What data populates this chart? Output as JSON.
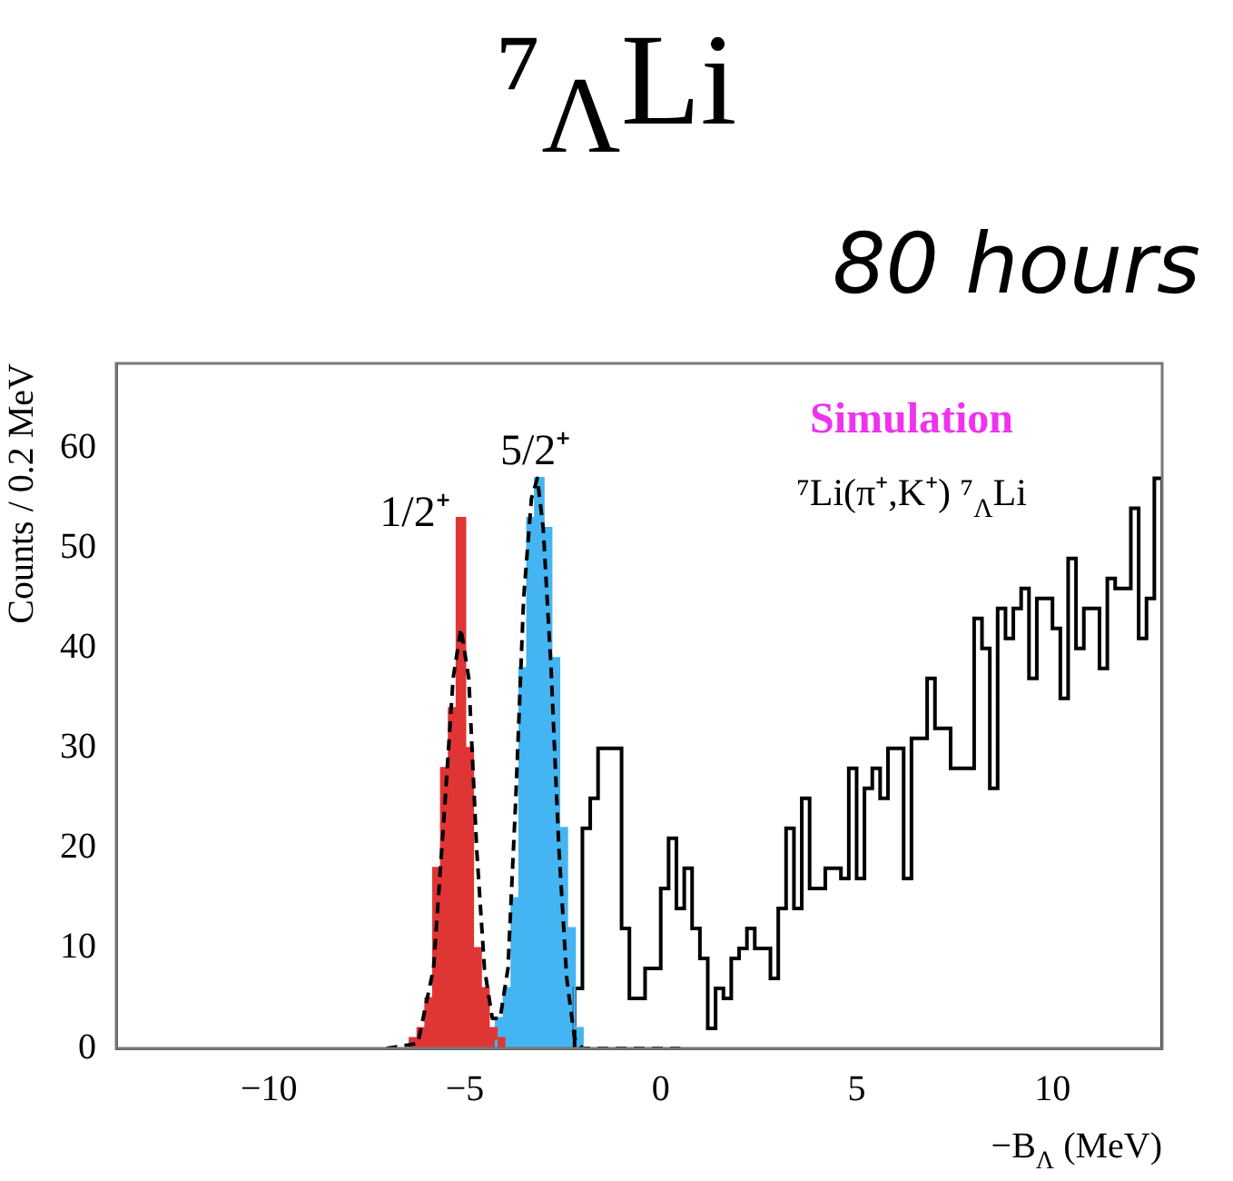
{
  "chart_data": {
    "type": "histogram",
    "title": "⁷$_{Λ}$Li",
    "subtitle": "80 hours",
    "xlabel": "−B$_{Λ}$ (MeV)",
    "ylabel": "Counts / 0.2 MeV",
    "series": [
      {
        "color": "#e03535",
        "bins": [
          -6.4,
          -6.2,
          -6,
          -5.8,
          -5.6,
          -5.4,
          -5.2,
          -5,
          -4.8,
          -4.6,
          -4.4,
          -4.2,
          -4
        ],
        "values": [
          1,
          2,
          5,
          18,
          28,
          34,
          53,
          30,
          10,
          6,
          2,
          1
        ]
      },
      {
        "color": "#45b4f2",
        "bins": [
          -4.2,
          -4,
          -3.8,
          -3.6,
          -3.4,
          -3.2,
          -3,
          -2.8,
          -2.6,
          -2.4,
          -2.2,
          -2
        ],
        "values": [
          3,
          6,
          15,
          38,
          53,
          57,
          52,
          39,
          22,
          12,
          2
        ]
      },
      {
        "color": "#000000",
        "bins": [
          -2.2,
          -2,
          -1.8,
          -1.6,
          -1.4,
          -1.2,
          -1,
          -0.8,
          -0.6,
          -0.4,
          -0.2,
          0,
          0.2,
          0.4,
          0.6,
          0.8,
          1,
          1.2,
          1.4,
          1.6,
          1.8,
          2,
          2.2,
          2.4,
          2.6,
          2.8,
          3,
          3.2,
          3.4,
          3.6,
          3.8,
          4,
          4.2,
          4.4,
          4.6,
          4.8,
          5,
          5.2,
          5.4,
          5.6,
          5.8,
          6,
          6.2,
          6.4,
          6.6,
          6.8,
          7,
          7.2,
          7.4,
          7.6,
          7.8,
          8,
          8.2,
          8.4,
          8.6,
          8.8,
          9,
          9.2,
          9.4,
          9.6,
          9.8,
          10,
          10.2,
          10.4,
          10.6,
          10.8,
          11,
          11.2,
          11.4,
          11.6,
          11.8,
          12,
          12.2,
          12.4,
          12.6,
          12.8
        ],
        "values": [
          6,
          22,
          25,
          30,
          30,
          30,
          12,
          5,
          5,
          8,
          8,
          16,
          21,
          14,
          18,
          12,
          9,
          2,
          6,
          5,
          9,
          10,
          12,
          10,
          10,
          7,
          14,
          22,
          14,
          25,
          16,
          16,
          18,
          18,
          17,
          28,
          17,
          26,
          28,
          25,
          30,
          30,
          17,
          31,
          31,
          37,
          32,
          32,
          28,
          28,
          28,
          43,
          40,
          26,
          44,
          41,
          44,
          46,
          37,
          45,
          45,
          42,
          35,
          49,
          40,
          44,
          44,
          38,
          47,
          46,
          46,
          54,
          41,
          45,
          57
        ]
      },
      {
        "type": "line",
        "color": "#000000",
        "line_style": "dashed",
        "x": [
          -7,
          -6.2,
          -5.8,
          -5.5,
          -5.3,
          -5.1,
          -4.9,
          -4.7,
          -4.5,
          -4.3,
          -4.1,
          -3.9,
          -3.7,
          -3.5,
          -3.3,
          -3.15,
          -3,
          -2.8,
          -2.6,
          -2.4,
          -2.2,
          -2,
          0.5
        ],
        "values": [
          0,
          0.5,
          8,
          25,
          37,
          42,
          37,
          20,
          8,
          3,
          3,
          8,
          25,
          45,
          55,
          57,
          52,
          38,
          20,
          7,
          1,
          0,
          0
        ]
      }
    ],
    "xlim": [
      -13.9,
      12.8
    ],
    "xticks": [
      {
        "value": -10,
        "label": "−10"
      },
      {
        "value": -5,
        "label": "−5"
      },
      0,
      5,
      10
    ],
    "ylim": [
      0,
      68.5
    ],
    "yticks": [
      0,
      10,
      20,
      30,
      40,
      50,
      60
    ],
    "annotations": [
      {
        "text": "1/2⁺",
        "x": -5.1,
        "y": 53
      },
      {
        "text": "5/2⁺",
        "x": -3.2,
        "y": 57
      },
      "Simulation",
      "⁷Li(π⁺,K⁺) ⁷$_{Λ}$Li"
    ],
    "grid": false,
    "legend": false
  }
}
